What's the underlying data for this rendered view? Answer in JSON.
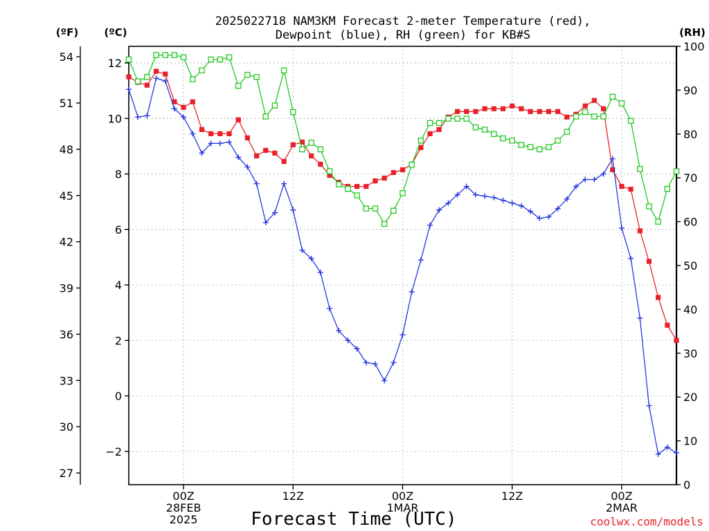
{
  "chart_data": {
    "type": "line",
    "title_lines": [
      "2025022718 NAM3KM Forecast 2-meter Temperature (red),",
      "Dewpoint (blue), RH (green) for KB#S"
    ],
    "xlabel": "Forecast Time (UTC)",
    "credit": "coolwx.com/models",
    "units": {
      "f": "(ºF)",
      "c": "(ºC)",
      "rh": "(RH)"
    },
    "ylim_c": [
      -3.2,
      12.6
    ],
    "ylim_rh": [
      0,
      100
    ],
    "x_hours_range": [
      0,
      60
    ],
    "x_ticks": [
      {
        "hour": 6,
        "lines": [
          "00Z",
          "28FEB",
          "2025"
        ]
      },
      {
        "hour": 18,
        "lines": [
          "12Z"
        ]
      },
      {
        "hour": 30,
        "lines": [
          "00Z",
          "1MAR"
        ]
      },
      {
        "hour": 42,
        "lines": [
          "12Z"
        ]
      },
      {
        "hour": 54,
        "lines": [
          "00Z",
          "2MAR"
        ]
      }
    ],
    "y_ticks_c": [
      -2,
      0,
      2,
      4,
      6,
      8,
      10,
      12
    ],
    "y_ticks_f": [
      27,
      30,
      33,
      36,
      39,
      42,
      45,
      48,
      51,
      54
    ],
    "y_ticks_rh": [
      0,
      10,
      20,
      30,
      40,
      50,
      60,
      70,
      80,
      90,
      100
    ],
    "grid": true,
    "series": [
      {
        "name": "Temperature",
        "color": "#e8202a",
        "marker": "filled-square",
        "x": [
          0,
          1,
          2,
          3,
          4,
          5,
          6,
          7,
          8,
          9,
          10,
          11,
          12,
          13,
          14,
          15,
          16,
          17,
          18,
          19,
          20,
          21,
          22,
          23,
          24,
          25,
          26,
          27,
          28,
          29,
          30,
          31,
          32,
          33,
          34,
          35,
          36,
          37,
          38,
          39,
          40,
          41,
          42,
          43,
          44,
          45,
          46,
          47,
          48,
          49,
          50,
          51,
          52,
          53,
          54,
          55,
          56,
          57,
          58,
          59,
          60
        ],
        "values": [
          11.5,
          11.3,
          11.2,
          11.7,
          11.6,
          10.6,
          10.4,
          10.6,
          9.6,
          9.45,
          9.45,
          9.45,
          9.95,
          9.3,
          8.65,
          8.85,
          8.75,
          8.45,
          9.05,
          9.15,
          8.65,
          8.35,
          7.95,
          7.7,
          7.55,
          7.55,
          7.55,
          7.75,
          7.85,
          8.05,
          8.15,
          8.35,
          8.95,
          9.45,
          9.6,
          10.05,
          10.25,
          10.25,
          10.25,
          10.35,
          10.35,
          10.35,
          10.45,
          10.35,
          10.25,
          10.25,
          10.25,
          10.25,
          10.05,
          10.15,
          10.45,
          10.65,
          10.35,
          8.15,
          7.55,
          7.45,
          5.95,
          4.85,
          3.55,
          2.55,
          2.0
        ]
      },
      {
        "name": "Dewpoint",
        "color": "#2236e0",
        "marker": "plus",
        "x": [
          0,
          1,
          2,
          3,
          4,
          5,
          6,
          7,
          8,
          9,
          10,
          11,
          12,
          13,
          14,
          15,
          16,
          17,
          18,
          19,
          20,
          21,
          22,
          23,
          24,
          25,
          26,
          27,
          28,
          29,
          30,
          31,
          32,
          33,
          34,
          35,
          36,
          37,
          38,
          39,
          40,
          41,
          42,
          43,
          44,
          45,
          46,
          47,
          48,
          49,
          50,
          51,
          52,
          53,
          54,
          55,
          56,
          57,
          58,
          59,
          60
        ],
        "values": [
          11.05,
          10.05,
          10.1,
          11.45,
          11.35,
          10.35,
          10.05,
          9.45,
          8.75,
          9.1,
          9.1,
          9.15,
          8.6,
          8.25,
          7.65,
          6.25,
          6.6,
          7.65,
          6.7,
          5.25,
          4.95,
          4.45,
          3.15,
          2.35,
          2.0,
          1.7,
          1.2,
          1.15,
          0.55,
          1.2,
          2.2,
          3.75,
          4.9,
          6.15,
          6.7,
          6.95,
          7.25,
          7.55,
          7.25,
          7.2,
          7.15,
          7.05,
          6.95,
          6.85,
          6.65,
          6.4,
          6.45,
          6.75,
          7.1,
          7.55,
          7.8,
          7.8,
          8.0,
          8.55,
          6.05,
          4.95,
          2.8,
          -0.35,
          -2.1,
          -1.85,
          -2.05
        ]
      },
      {
        "name": "RH",
        "color": "#1ec81e",
        "marker": "open-square",
        "x": [
          0,
          1,
          2,
          3,
          4,
          5,
          6,
          7,
          8,
          9,
          10,
          11,
          12,
          13,
          14,
          15,
          16,
          17,
          18,
          19,
          20,
          21,
          22,
          23,
          24,
          25,
          26,
          27,
          28,
          29,
          30,
          31,
          32,
          33,
          34,
          35,
          36,
          37,
          38,
          39,
          40,
          41,
          42,
          43,
          44,
          45,
          46,
          47,
          48,
          49,
          50,
          51,
          52,
          53,
          54,
          55,
          56,
          57,
          58,
          59,
          60
        ],
        "values": [
          97,
          92,
          93,
          98,
          98,
          98,
          97.5,
          92.5,
          94.5,
          97,
          97,
          97.5,
          91,
          93.5,
          93,
          84,
          86.5,
          94.5,
          85,
          76.5,
          78,
          76.5,
          71.5,
          68.5,
          67.5,
          66,
          63,
          63,
          59.5,
          62.5,
          66.5,
          73,
          78.5,
          82.5,
          82.5,
          83.5,
          83.5,
          83.5,
          81.5,
          81,
          80,
          79,
          78.5,
          77.5,
          77,
          76.5,
          77,
          78.5,
          80.5,
          84,
          85,
          84,
          84,
          88.5,
          87,
          83,
          72,
          63.5,
          60,
          67.5,
          71.5
        ]
      }
    ]
  }
}
